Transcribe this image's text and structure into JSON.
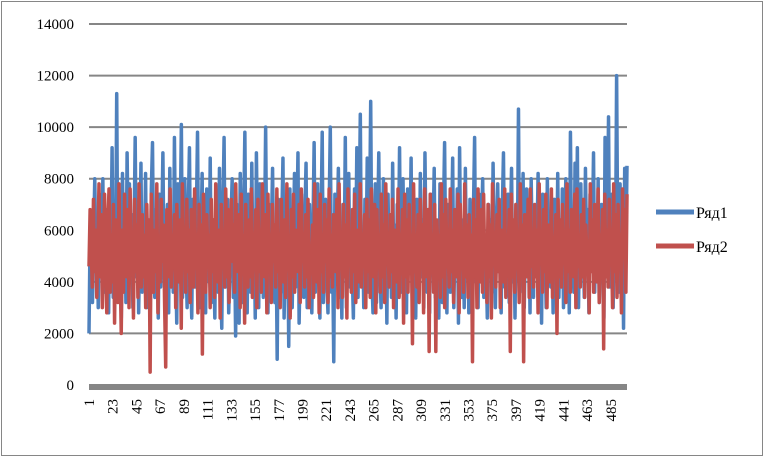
{
  "chart_data": {
    "type": "line",
    "x_start": 1,
    "x_end": 500,
    "x_tick_labels": [
      "1",
      "23",
      "45",
      "67",
      "89",
      "111",
      "133",
      "155",
      "177",
      "199",
      "221",
      "243",
      "265",
      "287",
      "309",
      "331",
      "353",
      "375",
      "397",
      "419",
      "441",
      "463",
      "485"
    ],
    "y_tick_labels": [
      "0",
      "2000",
      "4000",
      "6000",
      "8000",
      "10000",
      "12000",
      "14000"
    ],
    "ylim": [
      0,
      14000
    ],
    "grid": "horizontal",
    "legend_position": "right",
    "series": [
      {
        "name": "Ряд1",
        "color": "#4F81BD",
        "values": [
          2000,
          6000,
          4800,
          3200,
          5600,
          8000,
          4400,
          6200,
          3000,
          7400,
          5800,
          4200,
          8000,
          3600,
          5400,
          6800,
          4000,
          2800,
          7600,
          5200,
          9200,
          3400,
          6400,
          4600,
          11300,
          3800,
          7000,
          5000,
          2600,
          8200,
          4400,
          6000,
          3200,
          9000,
          5400,
          7800,
          4000,
          6600,
          3000,
          5800,
          9600,
          4200,
          7200,
          2800,
          5600,
          8600,
          3600,
          6400,
          4800,
          8200,
          3000,
          6200,
          5000,
          2400,
          7600,
          9400,
          4400,
          3400,
          6800,
          5200,
          2600,
          7400,
          3800,
          6000,
          9000,
          4600,
          3200,
          5800,
          7000,
          2800,
          8400,
          4200,
          6400,
          3600,
          9600,
          5000,
          2400,
          7800,
          4000,
          6200,
          10100,
          3400,
          5600,
          8000,
          4800,
          3000,
          6800,
          9200,
          4400,
          2600,
          7200,
          5200,
          3800,
          6600,
          9800,
          4200,
          3000,
          5800,
          8200,
          3600,
          6200,
          2800,
          7600,
          5000,
          4000,
          8800,
          3200,
          6000,
          4600,
          2600,
          7400,
          5400,
          3600,
          8400,
          4200,
          2200,
          6800,
          9600,
          3800,
          5200,
          7200,
          2800,
          4600,
          6400,
          8000,
          3400,
          5800,
          1900,
          7000,
          4400,
          2400,
          8200,
          5600,
          3200,
          6600,
          9800,
          4000,
          2800,
          7400,
          5000,
          3600,
          8600,
          4400,
          6200,
          2600,
          9000,
          5400,
          3000,
          7800,
          4200,
          6800,
          3400,
          5600,
          10000,
          4600,
          2800,
          7000,
          3800,
          6000,
          8400,
          4200,
          3200,
          5800,
          1000,
          7200,
          4800,
          3600,
          6400,
          8800,
          2600,
          5200,
          4000,
          6800,
          1500,
          7600,
          4400,
          3000,
          5600,
          8200,
          3800,
          6200,
          9000,
          2400,
          5000,
          7400,
          4200,
          3400,
          6600,
          8600,
          3000,
          5400,
          7000,
          4600,
          2800,
          6000,
          9400,
          3600,
          5200,
          7800,
          4400,
          2600,
          6400,
          9800,
          3200,
          5600,
          7200,
          4000,
          2800,
          6800,
          10000,
          3600,
          5000,
          900,
          7400,
          4200,
          6000,
          8400,
          3400,
          5800,
          2600,
          7000,
          4600,
          9600,
          3000,
          5400,
          8200,
          3800,
          6200,
          4400,
          2600,
          7600,
          5000,
          9200,
          3400,
          6600,
          10500,
          4000,
          5800,
          3000,
          7200,
          4800,
          8800,
          3600,
          6400,
          11000,
          4200,
          2800,
          5600,
          7800,
          3200,
          6000,
          9000,
          4400,
          3000,
          5200,
          8000,
          3800,
          6600,
          2400,
          7400,
          4600,
          5800,
          3400,
          8600,
          4200,
          6200,
          2600,
          7000,
          5000,
          9200,
          3600,
          5400,
          8000,
          4000,
          6800,
          2800,
          7600,
          4400,
          5600,
          8800,
          3200,
          6000,
          4800,
          2600,
          7200,
          5200,
          3800,
          8200,
          4200,
          6400,
          3000,
          9000,
          5000,
          3600,
          6800,
          2800,
          7400,
          4600,
          5800,
          8400,
          3400,
          6200,
          4000,
          2600,
          7800,
          5400,
          3200,
          6600,
          9400,
          4400,
          2800,
          7000,
          5000,
          3600,
          6000,
          8800,
          3000,
          5600,
          4200,
          7600,
          2400,
          9200,
          4800,
          3400,
          6400,
          3000,
          8400,
          4400,
          5800,
          2800,
          7200,
          5200,
          3800,
          6800,
          9600,
          4000,
          5400,
          3000,
          7400,
          4600,
          6200,
          8000,
          3400,
          5800,
          4800,
          2600,
          7000,
          4200,
          6400,
          3600,
          8600,
          5000,
          3000,
          6000,
          7800,
          4400,
          5400,
          2800,
          6800,
          9000,
          3800,
          5200,
          4600,
          7400,
          3200,
          6200,
          8400,
          4000,
          5600,
          2600,
          7000,
          4800,
          10700,
          3600,
          6000,
          4400,
          8200,
          3000,
          5800,
          7600,
          4200,
          6400,
          2800,
          8000,
          5000,
          3400,
          6800,
          4600,
          5600,
          8200,
          3600,
          6200,
          2400,
          7400,
          4800,
          5400,
          3000,
          8000,
          4400,
          6600,
          3800,
          5800,
          2800,
          7200,
          5000,
          4200,
          8200,
          3400,
          6000,
          4600,
          7600,
          3000,
          5600,
          8000,
          4000,
          6400,
          2800,
          9800,
          4800,
          5200,
          3600,
          8600,
          4400,
          9200,
          3000,
          6200,
          7800,
          4200,
          5600,
          3400,
          8400,
          5000,
          6800,
          2800,
          7400,
          4600,
          5800,
          9000,
          3600,
          6400,
          4200,
          8000,
          3200,
          5400,
          7000,
          4800,
          2600,
          9600,
          4400,
          6000,
          10400,
          3800,
          5600,
          7400,
          3000,
          6800,
          4600,
          12000,
          5200,
          3600,
          7800,
          4200,
          6600,
          2200,
          8400,
          5000,
          8500
        ]
      },
      {
        "name": "Ряд2",
        "color": "#C0504D",
        "values": [
          4600,
          6800,
          5200,
          3800,
          7200,
          4400,
          6000,
          3400,
          5600,
          7800,
          4200,
          6600,
          3000,
          5400,
          7400,
          4800,
          2800,
          6200,
          7600,
          3600,
          5800,
          4000,
          7000,
          2400,
          6400,
          5000,
          3200,
          7800,
          4600,
          2000,
          6000,
          3600,
          7400,
          5200,
          4200,
          6800,
          3000,
          7600,
          4800,
          5400,
          2600,
          7200,
          4400,
          6200,
          3400,
          7800,
          5000,
          3800,
          6600,
          4200,
          5800,
          3000,
          7000,
          4600,
          6400,
          500,
          7400,
          5400,
          3600,
          6000,
          4400,
          7800,
          2800,
          5600,
          4000,
          7200,
          4800,
          6200,
          3200,
          700,
          6800,
          5000,
          4200,
          7600,
          3800,
          5400,
          4600,
          6600,
          3000,
          7000,
          5200,
          4000,
          6400,
          2200,
          7800,
          4800,
          5600,
          3600,
          7200,
          4400,
          6000,
          3200,
          6800,
          5000,
          3800,
          7600,
          4600,
          5400,
          2800,
          7000,
          4200,
          6200,
          1200,
          7400,
          5200,
          3600,
          6600,
          4800,
          5800,
          3000,
          7200,
          4400,
          6400,
          3400,
          7800,
          5000,
          4000,
          6000,
          2600,
          7000,
          4600,
          5600,
          3800,
          7600,
          4200,
          6800,
          3200,
          5400,
          7200,
          4800,
          6200,
          3600,
          7800,
          5000,
          4400,
          6600,
          3000,
          7400,
          4600,
          5800,
          2400,
          7000,
          5200,
          3800,
          6400,
          4200,
          7600,
          3400,
          5600,
          4800,
          6800,
          3000,
          7200,
          4400,
          6000,
          3600,
          7800,
          5000,
          4200,
          6600,
          2800,
          7400,
          4600,
          5400,
          3200,
          7000,
          4800,
          6200,
          3800,
          7600,
          4400,
          5800,
          3000,
          7200,
          5000,
          4000,
          6400,
          3400,
          7800,
          4600,
          5600,
          2600,
          6800,
          4200,
          7400,
          3600,
          6000,
          5200,
          4400,
          7000,
          3200,
          7600,
          4800,
          5800,
          3800,
          6600,
          4200,
          7200,
          3000,
          5400,
          4600,
          6200,
          3400,
          7800,
          5000,
          4000,
          6800,
          2800,
          7400,
          4400,
          5600,
          3600,
          7000,
          4800,
          6400,
          3200,
          7600,
          4200,
          5800,
          3800,
          6600,
          5000,
          4400,
          7200,
          3000,
          7800,
          4600,
          5400,
          3400,
          7000,
          4200,
          6200,
          2600,
          7600,
          4800,
          5800,
          3600,
          6800,
          4400,
          7400,
          3200,
          6000,
          5200,
          4000,
          7800,
          3800,
          5600,
          4600,
          6600,
          3000,
          7200,
          4400,
          6400,
          3400,
          7600,
          5000,
          4200,
          7000,
          2800,
          6800,
          4600,
          5800,
          3600,
          7400,
          4200,
          6200,
          3200,
          7800,
          4800,
          5400,
          3800,
          6600,
          4400,
          7200,
          3000,
          6000,
          5000,
          4000,
          7600,
          3400,
          5600,
          4600,
          6800,
          2400,
          7400,
          4200,
          6400,
          3600,
          7000,
          4800,
          5800,
          1600,
          7800,
          4400,
          5400,
          3800,
          6600,
          3200,
          7200,
          4600,
          6200,
          2800,
          7600,
          5000,
          4200,
          6800,
          1300,
          7400,
          4400,
          5600,
          3600,
          7000,
          1300,
          6400,
          4800,
          5800,
          3400,
          7800,
          4200,
          6600,
          3000,
          7200,
          4600,
          5400,
          3800,
          7600,
          4400,
          6000,
          3200,
          6800,
          5000,
          4200,
          7400,
          2800,
          7000,
          4600,
          5600,
          3600,
          7800,
          4200,
          6200,
          3400,
          6600,
          4800,
          5800,
          900,
          7200,
          4400,
          6400,
          3000,
          7600,
          5000,
          4000,
          6800,
          3600,
          7400,
          4600,
          5400,
          3200,
          7000,
          4200,
          6200,
          2600,
          7800,
          4800,
          5600,
          3800,
          6600,
          4400,
          7200,
          3000,
          6000,
          5200,
          4000,
          7600,
          3400,
          5800,
          4600,
          6800,
          1300,
          7400,
          4200,
          6400,
          3600,
          7000,
          4800,
          5400,
          3200,
          7800,
          4400,
          6200,
          900,
          6600,
          5000,
          4200,
          7200,
          3400,
          7600,
          4600,
          5600,
          3800,
          7000,
          4200,
          6000,
          2800,
          7800,
          4800,
          5800,
          3600,
          6800,
          4400,
          7400,
          3000,
          6200,
          5000,
          4000,
          7600,
          3400,
          5400,
          4600,
          6600,
          2000,
          7200,
          4200,
          6400,
          3800,
          7000,
          4800,
          5800,
          3200,
          7800,
          4400,
          6000,
          3600,
          6800,
          5000,
          4200,
          7400,
          3000,
          7600,
          4600,
          5600,
          3800,
          6600,
          4200,
          7200,
          3400,
          6200,
          4800,
          5400,
          2800,
          7800,
          4400,
          6400,
          3600,
          7000,
          5000,
          4000,
          7600,
          3200,
          5800,
          4600,
          6800,
          1400,
          7400,
          4200,
          6000,
          3800,
          7200,
          4800,
          5600,
          3000,
          7800,
          4400,
          6600,
          3400,
          7000,
          4600,
          5800,
          2800,
          7600,
          5000,
          6800,
          3600,
          7400
        ]
      }
    ]
  }
}
